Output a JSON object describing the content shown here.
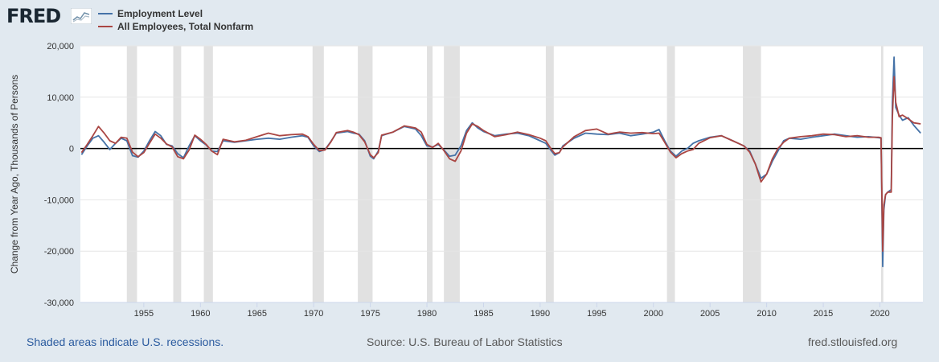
{
  "logo_text": "FRED",
  "legend": [
    {
      "label": "Employment Level",
      "color": "#4572a7"
    },
    {
      "label": "All Employees, Total Nonfarm",
      "color": "#aa4643"
    }
  ],
  "footer": {
    "left": "Shaded areas indicate U.S. recessions.",
    "source": "Source: U.S. Bureau of Labor Statistics",
    "site": "fred.stlouisfed.org"
  },
  "chart_data": {
    "type": "line",
    "title": "",
    "xlabel": "",
    "ylabel": "Change from Year Ago, Thousands of Persons",
    "xlim": [
      1949.4,
      2023.8
    ],
    "ylim": [
      -30000,
      20000
    ],
    "yticks": [
      20000,
      10000,
      0,
      -10000,
      -20000,
      -30000
    ],
    "ytick_labels": [
      "20,000",
      "10,000",
      "0",
      "-10,000",
      "-20,000",
      "-30,000"
    ],
    "xticks": [
      1955,
      1960,
      1965,
      1970,
      1975,
      1980,
      1985,
      1990,
      1995,
      2000,
      2005,
      2010,
      2015,
      2020
    ],
    "xtick_labels": [
      "1955",
      "1960",
      "1965",
      "1970",
      "1975",
      "1980",
      "1985",
      "1990",
      "1995",
      "2000",
      "2005",
      "2010",
      "2015",
      "2020"
    ],
    "recessions": [
      [
        1953.5,
        1954.4
      ],
      [
        1957.6,
        1958.3
      ],
      [
        1960.3,
        1961.1
      ],
      [
        1969.9,
        1970.9
      ],
      [
        1973.9,
        1975.2
      ],
      [
        1980.0,
        1980.5
      ],
      [
        1981.5,
        1982.9
      ],
      [
        1990.5,
        1991.2
      ],
      [
        2001.2,
        2001.9
      ],
      [
        2007.9,
        2009.5
      ],
      [
        2020.1,
        2020.3
      ]
    ],
    "series": [
      {
        "name": "Employment Level",
        "color": "#4572a7",
        "x": [
          1949.5,
          1950,
          1950.5,
          1951,
          1951.5,
          1952,
          1952.5,
          1953,
          1953.5,
          1954,
          1954.5,
          1955,
          1955.5,
          1956,
          1956.5,
          1957,
          1957.5,
          1958,
          1958.5,
          1959,
          1959.5,
          1960,
          1960.5,
          1961,
          1961.5,
          1962,
          1963,
          1964,
          1965,
          1966,
          1967,
          1968,
          1969,
          1969.5,
          1970,
          1970.5,
          1971,
          1971.5,
          1972,
          1973,
          1973.5,
          1974,
          1974.5,
          1975,
          1975.3,
          1975.7,
          1976,
          1977,
          1978,
          1979,
          1979.5,
          1980,
          1980.5,
          1981,
          1981.5,
          1982,
          1982.5,
          1983,
          1983.5,
          1984,
          1984.5,
          1985,
          1986,
          1987,
          1988,
          1989,
          1990,
          1990.5,
          1991,
          1991.3,
          1991.7,
          1992,
          1993,
          1994,
          1995,
          1996,
          1997,
          1998,
          1999,
          2000,
          2000.5,
          2001,
          2001.5,
          2002,
          2002.5,
          2003,
          2003.5,
          2004,
          2005,
          2006,
          2007,
          2007.5,
          2008,
          2008.5,
          2009,
          2009.5,
          2010,
          2010.5,
          2011,
          2011.5,
          2012,
          2013,
          2014,
          2015,
          2016,
          2017,
          2018,
          2019,
          2019.9,
          2020.1,
          2020.25,
          2020.35,
          2020.5,
          2020.7,
          2021,
          2021.1,
          2021.25,
          2021.4,
          2021.7,
          2022,
          2022.5,
          2023,
          2023.6
        ],
        "values": [
          -1200,
          500,
          2000,
          2500,
          1200,
          -200,
          1000,
          2000,
          1500,
          -1400,
          -1700,
          -500,
          1500,
          3300,
          2500,
          800,
          500,
          -1000,
          -1800,
          500,
          2500,
          1500,
          700,
          -500,
          -600,
          1500,
          1200,
          1500,
          1800,
          2000,
          1800,
          2200,
          2500,
          2200,
          500,
          -600,
          -200,
          1300,
          3000,
          3300,
          3000,
          2800,
          1500,
          -1500,
          -2000,
          -500,
          2500,
          3200,
          4300,
          3800,
          2500,
          500,
          300,
          800,
          -300,
          -1500,
          -1300,
          500,
          3500,
          5000,
          4000,
          3300,
          2500,
          2800,
          3000,
          2500,
          1500,
          1000,
          -500,
          -1300,
          -800,
          500,
          2000,
          3000,
          2800,
          2700,
          3000,
          2500,
          2800,
          3200,
          3700,
          1500,
          -500,
          -1500,
          -500,
          0,
          1000,
          1500,
          2200,
          2500,
          1500,
          1000,
          500,
          -500,
          -3000,
          -5800,
          -5000,
          -2500,
          -500,
          1500,
          2000,
          1800,
          2200,
          2500,
          2800,
          2500,
          2200,
          2300,
          2100,
          2000,
          -23000,
          -12000,
          -9000,
          -8500,
          -8000,
          9000,
          17800,
          8000,
          6500,
          5500,
          6000,
          4500,
          3000
        ]
      },
      {
        "name": "All Employees, Total Nonfarm",
        "color": "#aa4643",
        "x": [
          1949.5,
          1950,
          1950.5,
          1951,
          1951.5,
          1952,
          1952.5,
          1953,
          1953.5,
          1954,
          1954.5,
          1955,
          1955.5,
          1956,
          1956.5,
          1957,
          1957.5,
          1958,
          1958.5,
          1959,
          1959.5,
          1960,
          1960.5,
          1961,
          1961.5,
          1962,
          1963,
          1964,
          1965,
          1966,
          1967,
          1968,
          1969,
          1969.5,
          1970,
          1970.5,
          1971,
          1971.5,
          1972,
          1973,
          1973.5,
          1974,
          1974.5,
          1975,
          1975.3,
          1975.7,
          1976,
          1977,
          1978,
          1979,
          1979.5,
          1980,
          1980.5,
          1981,
          1981.5,
          1982,
          1982.5,
          1983,
          1983.5,
          1984,
          1984.5,
          1985,
          1986,
          1987,
          1988,
          1989,
          1990,
          1990.5,
          1991,
          1991.3,
          1991.7,
          1992,
          1993,
          1994,
          1995,
          1996,
          1997,
          1998,
          1999,
          2000,
          2000.5,
          2001,
          2001.5,
          2002,
          2002.5,
          2003,
          2003.5,
          2004,
          2005,
          2006,
          2007,
          2007.5,
          2008,
          2008.5,
          2009,
          2009.5,
          2010,
          2010.5,
          2011,
          2011.5,
          2012,
          2013,
          2014,
          2015,
          2016,
          2017,
          2018,
          2019,
          2019.9,
          2020.1,
          2020.25,
          2020.35,
          2020.5,
          2020.7,
          2021,
          2021.1,
          2021.25,
          2021.4,
          2021.7,
          2022,
          2022.5,
          2023,
          2023.6
        ],
        "values": [
          -800,
          800,
          2500,
          4300,
          3000,
          1500,
          1000,
          2200,
          2000,
          -700,
          -1600,
          -800,
          1000,
          2800,
          2000,
          900,
          300,
          -1600,
          -2000,
          -300,
          2600,
          1800,
          800,
          -500,
          -1200,
          1800,
          1300,
          1600,
          2300,
          3000,
          2500,
          2700,
          2800,
          2300,
          800,
          -400,
          -300,
          1200,
          3100,
          3500,
          3200,
          2700,
          1300,
          -1200,
          -1800,
          -800,
          2600,
          3200,
          4400,
          4000,
          3200,
          800,
          200,
          1000,
          -400,
          -2000,
          -2500,
          -500,
          3000,
          4800,
          4300,
          3500,
          2300,
          2700,
          3200,
          2700,
          2000,
          1500,
          -200,
          -1000,
          -800,
          300,
          2300,
          3500,
          3800,
          2800,
          3200,
          3000,
          3100,
          2900,
          3000,
          1200,
          -700,
          -1800,
          -1000,
          -500,
          -200,
          1000,
          2100,
          2500,
          1500,
          1000,
          500,
          -700,
          -3000,
          -6500,
          -5000,
          -2000,
          0,
          1200,
          2000,
          2300,
          2500,
          2800,
          2700,
          2300,
          2500,
          2200,
          2200,
          2100,
          -20000,
          -11000,
          -9000,
          -8500,
          -8500,
          6000,
          14000,
          9000,
          6200,
          6500,
          5800,
          5000,
          4800
        ]
      }
    ]
  }
}
